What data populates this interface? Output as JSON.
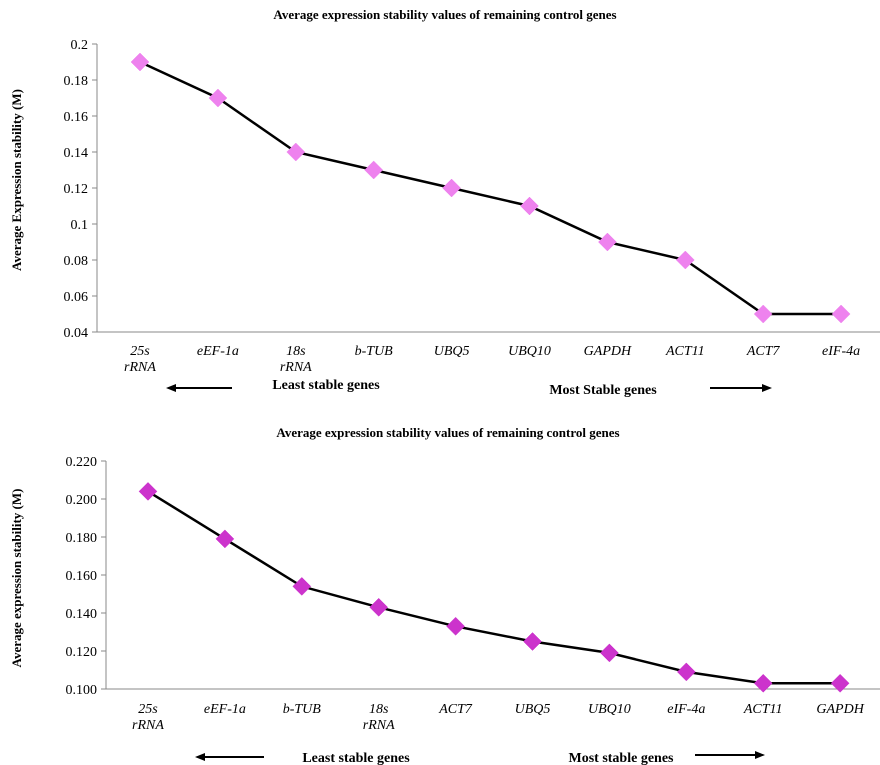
{
  "chart_data": [
    {
      "type": "line",
      "title": "Average expression stability values of remaining control genes",
      "ylabel": "Average Expression stability (M)",
      "xlabel": "",
      "categories": [
        "25s rRNA",
        "eEF-1a",
        "18s rRNA",
        "b-TUB",
        "UBQ5",
        "UBQ10",
        "GAPDH",
        "ACT11",
        "ACT7",
        "eIF-4a"
      ],
      "values": [
        0.19,
        0.17,
        0.14,
        0.13,
        0.12,
        0.11,
        0.09,
        0.08,
        0.05,
        0.05
      ],
      "ylim": [
        0.04,
        0.2
      ],
      "yticks": [
        "0.04",
        "0.06",
        "0.08",
        "0.1",
        "0.12",
        "0.14",
        "0.16",
        "0.18",
        "0.2"
      ],
      "grid": false,
      "marker_color": "#ee82ee",
      "line_color": "#000000",
      "annotations": {
        "left": "Least stable genes",
        "right": "Most Stable genes"
      }
    },
    {
      "type": "line",
      "title": "Average expression stability values of remaining control genes",
      "ylabel": "Average expression stability (M)",
      "xlabel": "",
      "categories": [
        "25s rRNA",
        "eEF-1a",
        "b-TUB",
        "18s rRNA",
        "ACT7",
        "UBQ5",
        "UBQ10",
        "eIF-4a",
        "ACT11",
        "GAPDH"
      ],
      "values": [
        0.204,
        0.179,
        0.154,
        0.143,
        0.133,
        0.125,
        0.119,
        0.109,
        0.103,
        0.103
      ],
      "ylim": [
        0.1,
        0.22
      ],
      "yticks": [
        "0.100",
        "0.120",
        "0.140",
        "0.160",
        "0.180",
        "0.200",
        "0.220"
      ],
      "grid": false,
      "marker_color": "#cc33cc",
      "line_color": "#000000",
      "annotations": {
        "left": "Least stable genes",
        "right": "Most stable genes"
      }
    }
  ]
}
